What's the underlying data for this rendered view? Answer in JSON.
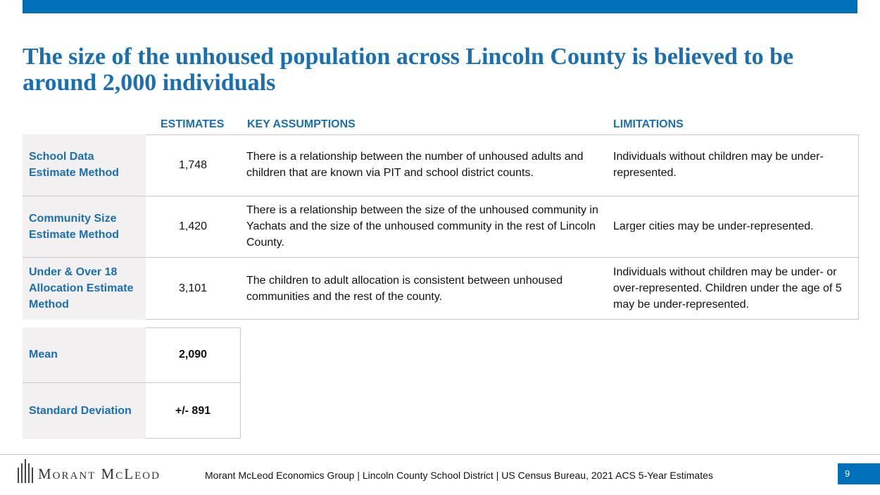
{
  "header": {
    "title": "The size of the unhoused population across Lincoln County is believed to be around 2,000 individuals"
  },
  "table": {
    "columns": [
      "ESTIMATES",
      "KEY ASSUMPTIONS",
      "LIMITATIONS"
    ],
    "rows": [
      [
        "School Data Estimate Method",
        "1,748",
        "There is a relationship between the number of unhoused adults and children that are known via PIT and school district counts.",
        "Individuals without children may be under-represented."
      ],
      [
        "Community Size Estimate Method",
        "1,420",
        "There is a relationship between the size of the unhoused community in Yachats and the size of the unhoused community in the rest of Lincoln County.",
        "Larger cities may be under-represented."
      ],
      [
        "Under & Over 18 Allocation Estimate Method",
        "3,101",
        "The children to adult allocation is consistent between unhoused communities and the rest of the county.",
        "Individuals without children may be under- or over-represented. Children under the age of 5 may be under-represented."
      ]
    ]
  },
  "summary": {
    "rows": [
      [
        "Mean",
        "2,090"
      ],
      [
        "Standard Deviation",
        "+/- 891"
      ]
    ]
  },
  "footer": {
    "logo": "Morant McLeod",
    "source": "Morant McLeod Economics Group | Lincoln County School District | US Census Bureau, 2021 ACS 5-Year Estimates",
    "page": "9"
  }
}
